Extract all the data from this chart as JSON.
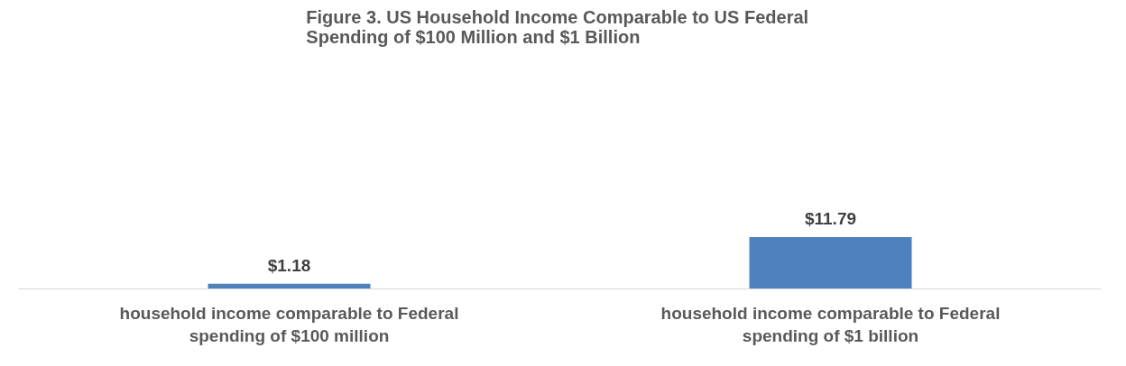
{
  "chart_data": {
    "type": "bar",
    "title": "Figure 3.  US Household Income Comparable to US Federal Spending of $100 Million and $1 Billion",
    "categories": [
      "household income comparable to Federal spending of $100 million",
      "household income comparable to Federal spending of $1 billion"
    ],
    "values": [
      1.18,
      11.79
    ],
    "color": "#4f81bd",
    "data_labels": true,
    "value_labels": [
      "$1.18",
      "$11.79"
    ],
    "grid": false
  }
}
